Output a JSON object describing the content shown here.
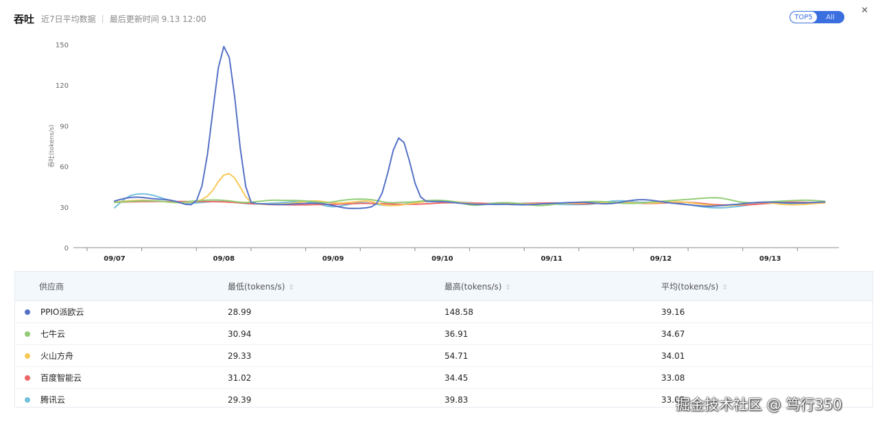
{
  "header": {
    "title": "吞吐",
    "subtitle": "近7日平均数据",
    "updated": "最后更新时间 9.13 12:00",
    "close_glyph": "✕"
  },
  "toggle": {
    "top5": "TOP5",
    "all": "All"
  },
  "colors": {
    "accent": "#3b6fe0"
  },
  "chart_data": {
    "type": "line",
    "ylabel": "吞吐(tokens/s)",
    "xlabel": "",
    "ylim": [
      0,
      150
    ],
    "yticks": [
      0,
      30,
      60,
      90,
      120,
      150
    ],
    "xticks": [
      "09/07",
      "09/08",
      "09/09",
      "09/10",
      "09/11",
      "09/12",
      "09/13"
    ],
    "x": [
      0,
      0.05,
      0.1,
      0.15,
      0.2,
      0.25,
      0.3,
      0.35,
      0.4,
      0.45,
      0.5,
      0.55,
      0.6,
      0.65,
      0.7,
      0.75,
      0.8,
      0.85,
      0.9,
      0.95,
      1,
      1.05,
      1.1,
      1.15,
      1.2,
      1.25,
      1.3,
      1.35,
      1.4,
      1.45,
      1.5,
      1.55,
      1.6,
      1.65,
      1.7,
      1.75,
      1.8,
      1.85,
      1.9,
      1.95,
      2,
      2.05,
      2.1,
      2.15,
      2.2,
      2.25,
      2.3,
      2.35,
      2.4,
      2.45,
      2.5,
      2.55,
      2.6,
      2.65,
      2.7,
      2.75,
      2.8,
      2.85,
      2.9,
      2.95,
      3,
      3.05,
      3.1,
      3.15,
      3.2,
      3.25,
      3.3,
      3.35,
      3.4,
      3.45,
      3.5,
      3.55,
      3.6,
      3.65,
      3.7,
      3.75,
      3.8,
      3.85,
      3.9,
      3.95,
      4,
      4.05,
      4.1,
      4.15,
      4.2,
      4.25,
      4.3,
      4.35,
      4.4,
      4.45,
      4.5,
      4.55,
      4.6,
      4.65,
      4.7,
      4.75,
      4.8,
      4.85,
      4.9,
      4.95,
      5,
      5.05,
      5.1,
      5.15,
      5.2,
      5.25,
      5.3,
      5.35,
      5.4,
      5.45,
      5.5,
      5.55,
      5.6,
      5.65,
      5.7,
      5.75,
      5.8,
      5.85,
      5.9,
      5.95,
      6,
      6.05,
      6.1,
      6.15,
      6.2,
      6.25,
      6.3,
      6.35,
      6.4,
      6.45,
      6.5
    ],
    "series": [
      {
        "name": "PPIO派欧云",
        "color": "#5470c6",
        "values": [
          34.4,
          35.5,
          36.5,
          37.1,
          37.3,
          37.1,
          36.6,
          36.2,
          35.9,
          35.6,
          35.2,
          34.4,
          33.2,
          32.0,
          31.7,
          34.8,
          45.5,
          68.7,
          101.4,
          132.8,
          148.6,
          140.4,
          111.1,
          73.6,
          45.2,
          33.5,
          32.5,
          32.4,
          32.2,
          32.0,
          31.9,
          31.9,
          32.1,
          32.3,
          32.5,
          32.7,
          32.8,
          32.8,
          32.5,
          31.9,
          31.1,
          30.2,
          29.4,
          29.0,
          29.0,
          29.1,
          29.4,
          30.1,
          32.8,
          40.6,
          55.2,
          71.8,
          81.0,
          77.6,
          63.6,
          47.6,
          37.6,
          34.3,
          34.1,
          34.1,
          34.0,
          33.7,
          33.3,
          32.9,
          32.6,
          32.3,
          32.1,
          32.0,
          32.0,
          32.1,
          32.1,
          32.1,
          32.0,
          31.8,
          31.7,
          31.6,
          31.8,
          32.0,
          32.3,
          32.5,
          32.7,
          32.9,
          33.1,
          33.3,
          33.4,
          33.5,
          33.5,
          33.2,
          32.8,
          32.5,
          32.4,
          32.6,
          33.1,
          33.8,
          34.5,
          35.1,
          35.4,
          35.4,
          35.1,
          34.6,
          34.0,
          33.4,
          32.9,
          32.5,
          32.1,
          31.7,
          31.3,
          30.9,
          30.6,
          30.6,
          30.8,
          31.1,
          31.4,
          31.8,
          32.1,
          32.5,
          32.9,
          33.2,
          33.5,
          33.6,
          33.6,
          33.5,
          33.3,
          33.1,
          33.0,
          33.0,
          33.1,
          33.2,
          33.4,
          33.6,
          33.7
        ]
      },
      {
        "name": "七牛云",
        "color": "#91cc75",
        "values": [
          33.4,
          33.6,
          33.9,
          34.2,
          34.4,
          34.6,
          34.6,
          34.5,
          34.4,
          34.1,
          33.7,
          33.4,
          33.4,
          33.7,
          34.2,
          34.5,
          34.8,
          35.1,
          35.2,
          35.2,
          34.9,
          34.5,
          34.0,
          33.6,
          33.4,
          33.6,
          34.0,
          34.4,
          34.8,
          35.0,
          35.0,
          34.9,
          34.9,
          34.8,
          34.7,
          34.5,
          34.2,
          33.8,
          33.4,
          33.3,
          33.8,
          34.5,
          35.1,
          35.5,
          35.8,
          35.9,
          35.8,
          35.4,
          34.8,
          33.9,
          33.3,
          33.2,
          33.4,
          33.6,
          33.7,
          33.9,
          34.3,
          34.7,
          34.9,
          35.0,
          34.8,
          34.5,
          34.0,
          33.3,
          32.4,
          31.6,
          31.3,
          31.5,
          32.1,
          32.7,
          33.1,
          33.2,
          33.2,
          33.0,
          32.6,
          32.1,
          31.6,
          31.2,
          31.1,
          31.3,
          31.8,
          32.3,
          32.8,
          33.2,
          33.4,
          33.6,
          33.8,
          34.0,
          34.1,
          34.0,
          33.8,
          33.4,
          33.1,
          32.8,
          32.7,
          32.7,
          32.9,
          33.2,
          33.6,
          33.9,
          34.2,
          34.5,
          34.8,
          35.1,
          35.4,
          35.7,
          36.0,
          36.3,
          36.6,
          36.8,
          36.9,
          36.6,
          35.9,
          35.0,
          34.1,
          33.5,
          33.2,
          33.2,
          33.4,
          33.7,
          33.9,
          34.1,
          34.3,
          34.5,
          34.7,
          34.9,
          35.0,
          35.0,
          34.8,
          34.5,
          34.2
        ]
      },
      {
        "name": "火山方舟",
        "color": "#fac858",
        "values": [
          33.6,
          34.0,
          34.4,
          34.7,
          34.9,
          35.0,
          34.9,
          34.7,
          34.4,
          34.0,
          33.6,
          33.3,
          33.2,
          33.3,
          33.7,
          34.3,
          35.5,
          38.0,
          42.5,
          48.8,
          53.6,
          54.7,
          51.4,
          44.7,
          37.6,
          33.6,
          32.3,
          32.1,
          32.1,
          32.2,
          32.2,
          32.3,
          32.6,
          33.1,
          33.6,
          34.1,
          34.5,
          34.5,
          34.1,
          33.6,
          33.1,
          32.9,
          33.1,
          33.4,
          33.8,
          34.2,
          34.5,
          34.1,
          32.9,
          31.7,
          31.1,
          31.1,
          31.3,
          31.8,
          32.4,
          33.0,
          33.6,
          34.1,
          34.4,
          34.6,
          34.6,
          34.4,
          34.1,
          33.7,
          33.2,
          32.7,
          32.3,
          32.1,
          32.2,
          32.6,
          33.0,
          33.2,
          33.1,
          32.9,
          32.6,
          32.4,
          32.3,
          32.3,
          32.4,
          32.5,
          32.5,
          32.6,
          32.7,
          32.8,
          32.9,
          33.0,
          33.1,
          33.2,
          33.2,
          33.2,
          33.3,
          33.4,
          33.4,
          33.4,
          33.3,
          33.2,
          33.1,
          33.0,
          33.0,
          33.1,
          33.3,
          33.5,
          33.7,
          33.8,
          33.7,
          33.3,
          32.8,
          32.3,
          31.8,
          31.4,
          31.1,
          31.0,
          31.0,
          31.2,
          31.6,
          32.2,
          32.7,
          33.1,
          33.3,
          33.3,
          33.1,
          32.6,
          32.1,
          31.8,
          31.6,
          31.7,
          31.9,
          32.2,
          32.5,
          32.8,
          33.0
        ]
      },
      {
        "name": "百度智能云",
        "color": "#ee6666",
        "values": [
          33.5,
          33.6,
          33.7,
          33.8,
          33.9,
          34.0,
          34.0,
          34.1,
          34.1,
          34.1,
          34.1,
          34.1,
          34.1,
          34.1,
          34.0,
          34.0,
          34.0,
          34.0,
          34.0,
          33.9,
          33.8,
          33.6,
          33.4,
          33.1,
          32.8,
          32.5,
          32.3,
          32.1,
          31.9,
          31.8,
          31.7,
          31.7,
          31.6,
          31.6,
          31.6,
          31.6,
          31.7,
          31.8,
          31.9,
          32.0,
          32.1,
          32.2,
          32.3,
          32.5,
          32.6,
          32.7,
          32.7,
          32.7,
          32.6,
          32.5,
          32.3,
          32.2,
          32.1,
          32.0,
          32.0,
          32.1,
          32.2,
          32.4,
          32.6,
          32.9,
          33.1,
          33.2,
          33.2,
          33.2,
          33.1,
          33.0,
          32.9,
          32.8,
          32.7,
          32.6,
          32.6,
          32.6,
          32.6,
          32.6,
          32.6,
          32.6,
          32.7,
          32.8,
          32.9,
          33.0,
          33.0,
          33.0,
          32.9,
          32.7,
          32.5,
          32.4,
          32.4,
          32.5,
          32.7,
          32.9,
          33.1,
          33.3,
          33.4,
          33.4,
          33.3,
          33.1,
          32.9,
          32.7,
          32.7,
          32.7,
          32.9,
          33.1,
          33.3,
          33.5,
          33.6,
          33.5,
          33.2,
          32.9,
          32.5,
          32.1,
          31.8,
          31.6,
          31.5,
          31.4,
          31.4,
          31.5,
          31.6,
          31.9,
          32.2,
          32.5,
          32.8,
          33.1,
          33.3,
          33.5,
          33.6,
          33.6,
          33.5,
          33.4,
          33.3,
          33.3,
          33.3
        ]
      },
      {
        "name": "腾讯云",
        "color": "#73c0de",
        "values": [
          29.4,
          33.1,
          36.4,
          38.6,
          39.5,
          39.8,
          39.5,
          38.7,
          37.5,
          36.3,
          35.1,
          34.1,
          33.4,
          33.0,
          32.9,
          33.1,
          33.4,
          33.7,
          34.0,
          34.1,
          34.0,
          33.8,
          33.4,
          33.0,
          32.6,
          32.3,
          32.3,
          32.4,
          32.6,
          32.9,
          33.1,
          33.4,
          33.7,
          34.0,
          34.1,
          34.0,
          33.5,
          32.6,
          31.5,
          30.6,
          30.2,
          30.5,
          31.2,
          32.1,
          32.9,
          33.3,
          33.2,
          32.7,
          32.0,
          31.4,
          31.1,
          31.2,
          31.6,
          32.2,
          32.8,
          33.3,
          33.7,
          34.0,
          34.1,
          34.1,
          34.0,
          33.9,
          33.8,
          33.7,
          33.5,
          33.2,
          32.9,
          32.5,
          32.2,
          32.0,
          31.9,
          32.0,
          32.2,
          32.4,
          32.6,
          32.8,
          32.9,
          32.9,
          32.8,
          32.6,
          32.4,
          32.1,
          31.9,
          31.8,
          31.8,
          31.8,
          31.9,
          32.1,
          32.5,
          33.1,
          33.7,
          34.3,
          34.6,
          34.6,
          34.3,
          33.9,
          33.6,
          33.5,
          33.5,
          33.7,
          33.9,
          33.9,
          33.6,
          33.1,
          32.4,
          31.7,
          31.1,
          30.5,
          30.0,
          29.6,
          29.4,
          29.4,
          29.6,
          30.0,
          30.4,
          30.9,
          31.5,
          32.0,
          32.4,
          32.7,
          32.8,
          32.8,
          32.8,
          32.7,
          32.7,
          32.8,
          32.9,
          33.0,
          33.1,
          33.2,
          33.2
        ]
      }
    ]
  },
  "table": {
    "headers": {
      "provider": "供应商",
      "min": "最低(tokens/s)",
      "max": "最高(tokens/s)",
      "avg": "平均(tokens/s)"
    },
    "sort_glyph": "⇳",
    "rows": [
      {
        "provider": "PPIO派欧云",
        "min": "28.99",
        "max": "148.58",
        "avg": "39.16",
        "color": "#5470c6"
      },
      {
        "provider": "七牛云",
        "min": "30.94",
        "max": "36.91",
        "avg": "34.67",
        "color": "#91cc75"
      },
      {
        "provider": "火山方舟",
        "min": "29.33",
        "max": "54.71",
        "avg": "34.01",
        "color": "#fac858"
      },
      {
        "provider": "百度智能云",
        "min": "31.02",
        "max": "34.45",
        "avg": "33.08",
        "color": "#ee6666"
      },
      {
        "provider": "腾讯云",
        "min": "29.39",
        "max": "39.83",
        "avg": "33.05",
        "color": "#73c0de"
      }
    ]
  },
  "watermark": "掘金技术社区 @ 笃行350"
}
